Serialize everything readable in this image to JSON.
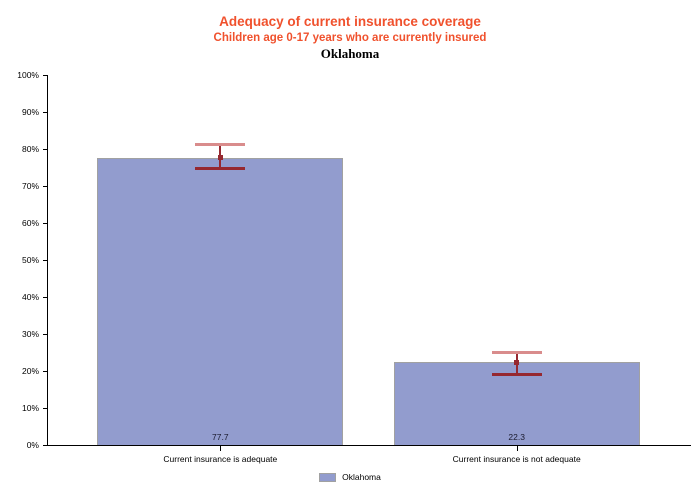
{
  "chart_data": {
    "type": "bar",
    "title": "Adequacy of current insurance coverage",
    "subtitle": "Children age 0-17 years who are currently insured",
    "region": "Oklahoma",
    "categories": [
      "Current insurance is adequate",
      "Current insurance is not adequate"
    ],
    "series": [
      {
        "name": "Oklahoma",
        "values": [
          77.7,
          22.3
        ]
      }
    ],
    "bar_value_labels": [
      "77.7",
      "22.3"
    ],
    "error_bars": [
      {
        "low": 74.8,
        "high": 81.3
      },
      {
        "low": 19.3,
        "high": 25.1
      }
    ],
    "ylim": [
      0,
      100
    ],
    "yticks": [
      0,
      10,
      20,
      30,
      40,
      50,
      60,
      70,
      80,
      90,
      100
    ],
    "ytick_suffix": "%",
    "grid": false,
    "legend": {
      "label": "Oklahoma",
      "position": "bottom-center"
    }
  },
  "colors": {
    "title_accent": "#F0512D",
    "bar_fill": "#929CCE",
    "bar_border": "#A1A1A1",
    "error_dark": "#962830",
    "error_light": "#D98C8C",
    "axis": "#000000"
  }
}
